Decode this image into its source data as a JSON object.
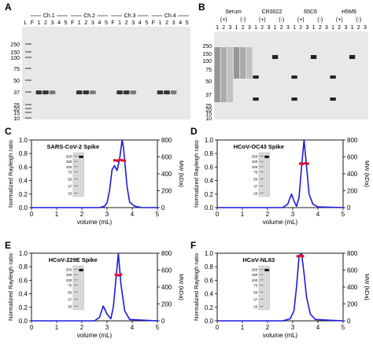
{
  "panel_letters": [
    "A",
    "B",
    "C",
    "D",
    "E",
    "F"
  ],
  "gel_a": {
    "lane_labels": [
      "L",
      "F",
      "1",
      "2",
      "3",
      "4",
      "5",
      "F",
      "1",
      "2",
      "3",
      "4",
      "5",
      "F",
      "1",
      "2",
      "3",
      "4",
      "5",
      "F",
      "1",
      "2",
      "3",
      "4",
      "5"
    ],
    "groups": [
      "Ch.1",
      "Ch.2",
      "Ch.3",
      "Ch.4"
    ],
    "markers": [
      "250",
      "150",
      "100",
      "75",
      "50",
      "37",
      "25",
      "20",
      "15",
      "10"
    ]
  },
  "gel_b": {
    "groups": [
      "Serum",
      "CR3022",
      "65C6",
      "H5M9"
    ],
    "reduce_labels": [
      "(+)",
      "(-)",
      "(+)",
      "(-)",
      "(+)",
      "(-)",
      "(+)",
      "(-)"
    ],
    "lane_labels": [
      "1",
      "2",
      "3",
      "1",
      "2",
      "3",
      "1",
      "2",
      "3",
      "1",
      "2",
      "3",
      "1",
      "2",
      "3",
      "1",
      "2",
      "3",
      "1",
      "2",
      "3",
      "1",
      "2",
      "3"
    ],
    "markers": [
      "250",
      "150",
      "100",
      "75",
      "50",
      "37",
      "25",
      "20",
      "15",
      "10"
    ]
  },
  "chart_data": [
    {
      "type": "line",
      "title": "SARS-CoV-2 Spike",
      "xlabel": "volume (mL)",
      "ylabel": "Normalized Rayleigh ratio",
      "y2label": "MW (kDa)",
      "xlim": [
        0,
        5
      ],
      "ylim": [
        0,
        1.0
      ],
      "y2lim": [
        0,
        800
      ],
      "xticks": [
        "0",
        "1",
        "2",
        "3",
        "4",
        "5"
      ],
      "yticks": [
        "0.0",
        "0.2",
        "0.4",
        "0.6",
        "0.8",
        "1.0"
      ],
      "y2ticks": [
        "0",
        "200",
        "400",
        "600",
        "800"
      ],
      "series": [
        {
          "x": [
            0,
            2.7,
            2.9,
            3.0,
            3.1,
            3.2,
            3.3,
            3.35,
            3.4,
            3.5,
            3.6,
            3.65,
            3.7,
            3.8,
            3.9,
            4.1,
            4.4,
            5
          ],
          "values": [
            0,
            0,
            0.02,
            0.07,
            0.25,
            0.56,
            0.62,
            0.58,
            0.55,
            0.72,
            1.0,
            0.9,
            0.7,
            0.3,
            0.08,
            0.02,
            0,
            0
          ]
        },
        {
          "x": [
            3.3,
            3.4,
            3.5,
            3.6,
            3.7
          ],
          "values": [
            560,
            555,
            565,
            560,
            555
          ]
        }
      ],
      "gel_markers": [
        "250",
        "150",
        "100",
        "75",
        "50",
        "37",
        "25"
      ]
    },
    {
      "type": "line",
      "title": "HCoV-OC43 Spike",
      "xlabel": "volume (mL)",
      "ylabel": "Normalized Rayleigh ratio",
      "y2label": "MW (kDa)",
      "xlim": [
        0,
        5
      ],
      "ylim": [
        0,
        1.0
      ],
      "y2lim": [
        0,
        800
      ],
      "xticks": [
        "0",
        "1",
        "2",
        "3",
        "4",
        "5"
      ],
      "yticks": [
        "0.0",
        "0.2",
        "0.4",
        "0.6",
        "0.8",
        "1.0"
      ],
      "y2ticks": [
        "0",
        "200",
        "400",
        "600",
        "800"
      ],
      "series": [
        {
          "x": [
            0,
            2.6,
            2.8,
            2.95,
            3.05,
            3.15,
            3.25,
            3.35,
            3.45,
            3.55,
            3.65,
            3.8,
            4.0,
            5
          ],
          "values": [
            0,
            0,
            0.05,
            0.2,
            0.1,
            0.02,
            0.15,
            0.6,
            1.0,
            0.6,
            0.2,
            0.05,
            0.01,
            0
          ]
        },
        {
          "x": [
            3.3,
            3.4,
            3.5,
            3.6
          ],
          "values": [
            520,
            518,
            525,
            520
          ]
        }
      ],
      "gel_markers": [
        "250",
        "150",
        "100",
        "75",
        "50",
        "37",
        "25"
      ]
    },
    {
      "type": "line",
      "title": "HCoV-229E Spike",
      "xlabel": "volume (mL)",
      "ylabel": "Normalized Rayleigh ratio",
      "y2label": "MW (kDa)",
      "xlim": [
        0,
        5
      ],
      "ylim": [
        0,
        1.0
      ],
      "y2lim": [
        0,
        800
      ],
      "xticks": [
        "0",
        "1",
        "2",
        "3",
        "4",
        "5"
      ],
      "yticks": [
        "0.0",
        "0.2",
        "0.4",
        "0.6",
        "0.8",
        "1.0"
      ],
      "y2ticks": [
        "0",
        "200",
        "400",
        "600",
        "800"
      ],
      "series": [
        {
          "x": [
            0,
            2.5,
            2.7,
            2.85,
            3.0,
            3.15,
            3.25,
            3.35,
            3.45,
            3.55,
            3.7,
            3.9,
            5
          ],
          "values": [
            0,
            0,
            0.05,
            0.22,
            0.1,
            0.03,
            0.2,
            0.6,
            1.0,
            0.55,
            0.15,
            0.02,
            0
          ]
        },
        {
          "x": [
            3.35,
            3.45,
            3.55
          ],
          "values": [
            545,
            540,
            548
          ]
        }
      ],
      "gel_markers": [
        "250",
        "150",
        "100",
        "75",
        "50",
        "37",
        "25"
      ]
    },
    {
      "type": "line",
      "title": "HCoV-NL63",
      "xlabel": "volume (mL)",
      "ylabel": "Normalized Rayleigh ratio",
      "y2label": "MW (kDa)",
      "xlim": [
        0,
        5
      ],
      "ylim": [
        0,
        1.0
      ],
      "y2lim": [
        0,
        800
      ],
      "xticks": [
        "0",
        "1",
        "2",
        "3",
        "4",
        "5"
      ],
      "yticks": [
        "0.0",
        "0.2",
        "0.4",
        "0.6",
        "0.8",
        "1.0"
      ],
      "y2ticks": [
        "0",
        "200",
        "400",
        "600",
        "800"
      ],
      "series": [
        {
          "x": [
            0,
            2.6,
            2.9,
            3.05,
            3.15,
            3.25,
            3.35,
            3.45,
            3.55,
            3.7,
            3.9,
            5
          ],
          "values": [
            0,
            0,
            0.03,
            0.15,
            0.5,
            0.95,
            1.0,
            0.7,
            0.35,
            0.1,
            0.02,
            0
          ]
        },
        {
          "x": [
            3.2,
            3.3,
            3.4
          ],
          "values": [
            765,
            770,
            765
          ]
        }
      ],
      "gel_markers": [
        "250",
        "150",
        "100",
        "75",
        "50",
        "37",
        "25"
      ]
    }
  ]
}
